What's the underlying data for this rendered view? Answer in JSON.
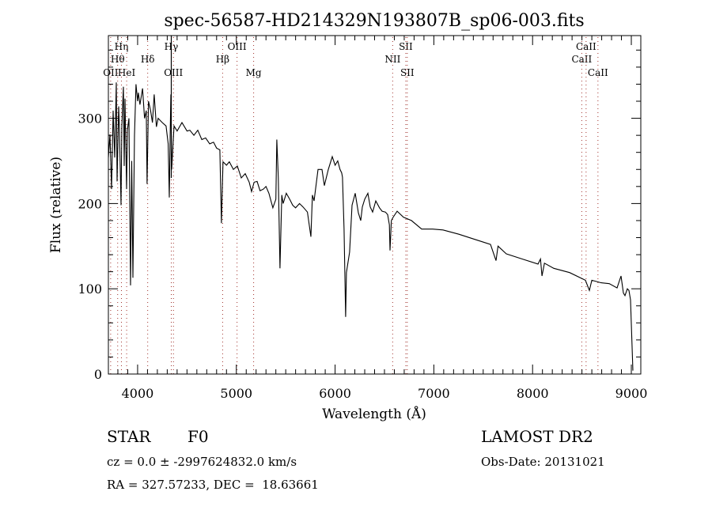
{
  "chart_data": {
    "type": "line",
    "title": "spec-56587-HD214329N193807B_sp06-003.fits",
    "xlabel": "Wavelength (Å)",
    "ylabel": "Flux (relative)",
    "xlim": [
      3704,
      9096
    ],
    "ylim": [
      0,
      397
    ],
    "xticks": [
      4000,
      5000,
      6000,
      7000,
      8000,
      9000
    ],
    "yticks": [
      0,
      100,
      200,
      300
    ],
    "grid": false,
    "line_color": "#000000",
    "marker_color": "#a0302a",
    "series": [
      {
        "name": "spectrum",
        "points": [
          [
            3704,
            254
          ],
          [
            3720,
            281
          ],
          [
            3736,
            217
          ],
          [
            3752,
            309
          ],
          [
            3768,
            254
          ],
          [
            3784,
            342
          ],
          [
            3792,
            226
          ],
          [
            3808,
            314
          ],
          [
            3816,
            286
          ],
          [
            3832,
            198
          ],
          [
            3840,
            291
          ],
          [
            3856,
            337
          ],
          [
            3864,
            244
          ],
          [
            3872,
            323
          ],
          [
            3888,
            217
          ],
          [
            3896,
            286
          ],
          [
            3912,
            300
          ],
          [
            3928,
            104
          ],
          [
            3940,
            250
          ],
          [
            3952,
            113
          ],
          [
            3968,
            280
          ],
          [
            3984,
            340
          ],
          [
            4000,
            320
          ],
          [
            4008,
            330
          ],
          [
            4024,
            316
          ],
          [
            4050,
            335
          ],
          [
            4070,
            300
          ],
          [
            4088,
            309
          ],
          [
            4096,
            223
          ],
          [
            4110,
            320
          ],
          [
            4130,
            310
          ],
          [
            4150,
            295
          ],
          [
            4168,
            328
          ],
          [
            4190,
            290
          ],
          [
            4208,
            300
          ],
          [
            4250,
            295
          ],
          [
            4288,
            291
          ],
          [
            4310,
            270
          ],
          [
            4321,
            207
          ],
          [
            4330,
            280
          ],
          [
            4337,
            328
          ],
          [
            4345,
            240
          ],
          [
            4369,
            291
          ],
          [
            4400,
            285
          ],
          [
            4449,
            295
          ],
          [
            4500,
            285
          ],
          [
            4529,
            286
          ],
          [
            4570,
            280
          ],
          [
            4609,
            286
          ],
          [
            4650,
            275
          ],
          [
            4689,
            277
          ],
          [
            4730,
            270
          ],
          [
            4769,
            272
          ],
          [
            4800,
            265
          ],
          [
            4833,
            263
          ],
          [
            4849,
            177
          ],
          [
            4865,
            249
          ],
          [
            4900,
            245
          ],
          [
            4929,
            249
          ],
          [
            4970,
            240
          ],
          [
            5010,
            244
          ],
          [
            5050,
            230
          ],
          [
            5090,
            235
          ],
          [
            5130,
            225
          ],
          [
            5154,
            214
          ],
          [
            5180,
            225
          ],
          [
            5210,
            226
          ],
          [
            5240,
            215
          ],
          [
            5274,
            217
          ],
          [
            5300,
            220
          ],
          [
            5330,
            212
          ],
          [
            5370,
            195
          ],
          [
            5400,
            205
          ],
          [
            5410,
            275
          ],
          [
            5425,
            230
          ],
          [
            5442,
            124
          ],
          [
            5460,
            210
          ],
          [
            5474,
            200
          ],
          [
            5506,
            212
          ],
          [
            5540,
            205
          ],
          [
            5571,
            198
          ],
          [
            5600,
            195
          ],
          [
            5640,
            200
          ],
          [
            5675,
            196
          ],
          [
            5720,
            190
          ],
          [
            5755,
            161
          ],
          [
            5770,
            210
          ],
          [
            5787,
            203
          ],
          [
            5827,
            240
          ],
          [
            5867,
            240
          ],
          [
            5891,
            221
          ],
          [
            5931,
            240
          ],
          [
            5971,
            255
          ],
          [
            6000,
            245
          ],
          [
            6027,
            250
          ],
          [
            6050,
            240
          ],
          [
            6067,
            236
          ],
          [
            6075,
            231
          ],
          [
            6091,
            170
          ],
          [
            6107,
            67
          ],
          [
            6115,
            119
          ],
          [
            6147,
            143
          ],
          [
            6172,
            198
          ],
          [
            6204,
            212
          ],
          [
            6236,
            189
          ],
          [
            6260,
            180
          ],
          [
            6276,
            196
          ],
          [
            6300,
            205
          ],
          [
            6332,
            212
          ],
          [
            6356,
            196
          ],
          [
            6380,
            190
          ],
          [
            6412,
            203
          ],
          [
            6450,
            195
          ],
          [
            6476,
            191
          ],
          [
            6510,
            190
          ],
          [
            6532,
            187
          ],
          [
            6550,
            175
          ],
          [
            6556,
            145
          ],
          [
            6570,
            180
          ],
          [
            6588,
            184
          ],
          [
            6628,
            191
          ],
          [
            6692,
            184
          ],
          [
            6773,
            180
          ],
          [
            6877,
            170
          ],
          [
            6989,
            170
          ],
          [
            7093,
            169
          ],
          [
            7253,
            164
          ],
          [
            7414,
            158
          ],
          [
            7574,
            152
          ],
          [
            7630,
            133
          ],
          [
            7650,
            150
          ],
          [
            7734,
            141
          ],
          [
            7894,
            135
          ],
          [
            8055,
            129
          ],
          [
            8080,
            135
          ],
          [
            8095,
            115
          ],
          [
            8120,
            130
          ],
          [
            8215,
            124
          ],
          [
            8375,
            119
          ],
          [
            8535,
            110
          ],
          [
            8575,
            98
          ],
          [
            8600,
            110
          ],
          [
            8695,
            107
          ],
          [
            8776,
            106
          ],
          [
            8856,
            101
          ],
          [
            8896,
            115
          ],
          [
            8920,
            95
          ],
          [
            8936,
            92
          ],
          [
            8960,
            100
          ],
          [
            8976,
            98
          ],
          [
            8992,
            87
          ],
          [
            9016,
            4
          ]
        ]
      }
    ],
    "line_markers": [
      {
        "label": "OII",
        "wavelength": 3727,
        "row": 3
      },
      {
        "label": "Hθ",
        "wavelength": 3798,
        "row": 2
      },
      {
        "label": "Hη",
        "wavelength": 3836,
        "row": 1
      },
      {
        "label": "HeI",
        "wavelength": 3889,
        "row": 3
      },
      {
        "label": "Hδ",
        "wavelength": 4102,
        "row": 2
      },
      {
        "label": "Hγ",
        "wavelength": 4341,
        "row": 1
      },
      {
        "label": "OIII",
        "wavelength": 4363,
        "row": 3
      },
      {
        "label": "Hβ",
        "wavelength": 4861,
        "row": 2
      },
      {
        "label": "OIII",
        "wavelength": 5007,
        "row": 1
      },
      {
        "label": "Mg",
        "wavelength": 5175,
        "row": 3
      },
      {
        "label": "NII",
        "wavelength": 6583,
        "row": 2
      },
      {
        "label": "SII",
        "wavelength": 6716,
        "row": 1
      },
      {
        "label": "SII",
        "wavelength": 6731,
        "row": 3
      },
      {
        "label": "CaII",
        "wavelength": 8498,
        "row": 2
      },
      {
        "label": "CaII",
        "wavelength": 8542,
        "row": 1
      },
      {
        "label": "CaII",
        "wavelength": 8662,
        "row": 3
      }
    ]
  },
  "info": {
    "object_type": "STAR",
    "subclass": "F0",
    "survey": "LAMOST DR2",
    "cz": "cz = 0.0 ± -2997624832.0 km/s",
    "obs_date": "Obs-Date: 20131021",
    "coords": "RA = 327.57233, DEC =  18.63661"
  }
}
